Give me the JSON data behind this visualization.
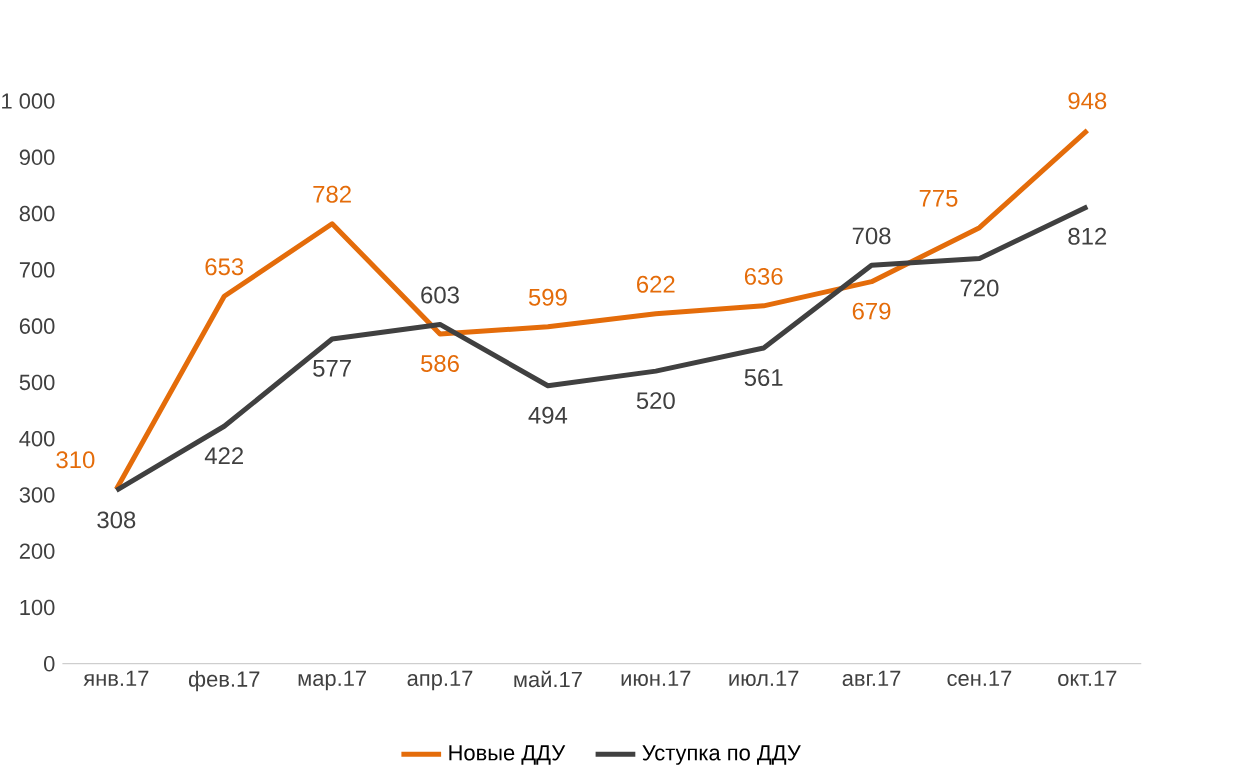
{
  "chart_data": {
    "type": "line",
    "categories": [
      "янв.17",
      "фев.17",
      "мар.17",
      "апр.17",
      "май.17",
      "июн.17",
      "июл.17",
      "авг.17",
      "сен.17",
      "окт.17"
    ],
    "series": [
      {
        "name": "Новые ДДУ",
        "color": "#e46c0a",
        "values": [
          310,
          653,
          782,
          586,
          599,
          622,
          636,
          679,
          775,
          948
        ]
      },
      {
        "name": "Уступка по ДДУ",
        "color": "#404040",
        "values": [
          308,
          422,
          577,
          603,
          494,
          520,
          561,
          708,
          720,
          812
        ]
      }
    ],
    "ylim": [
      0,
      1000
    ],
    "yticks": [
      0,
      100,
      200,
      300,
      400,
      500,
      600,
      700,
      800,
      900,
      {
        "value": 1000,
        "label": "1 000"
      }
    ],
    "data_labels": true,
    "legend": "bottom",
    "grid": false,
    "marker": "none",
    "line_style": "solid"
  }
}
